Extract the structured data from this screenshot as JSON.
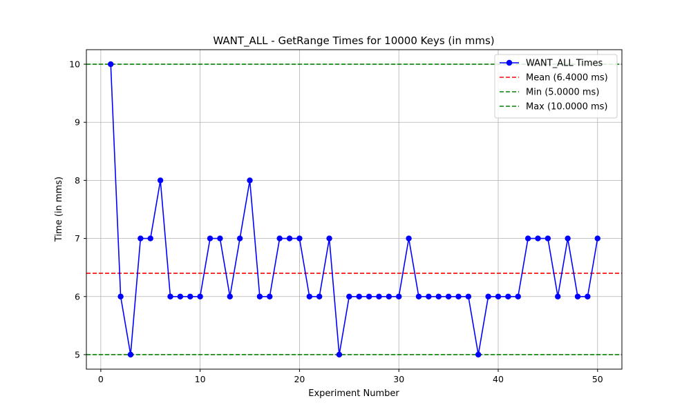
{
  "chart_data": {
    "type": "line",
    "title": "WANT_ALL - GetRange Times for 10000 Keys (in mms)",
    "xlabel": "Experiment Number",
    "ylabel": "Time (in mms)",
    "xlim": [
      -1.45,
      52.45
    ],
    "ylim": [
      4.75,
      10.25
    ],
    "xticks": [
      0,
      10,
      20,
      30,
      40,
      50
    ],
    "yticks": [
      5,
      6,
      7,
      8,
      9,
      10
    ],
    "grid": true,
    "legend_position": "top-right",
    "x": [
      1,
      2,
      3,
      4,
      5,
      6,
      7,
      8,
      9,
      10,
      11,
      12,
      13,
      14,
      15,
      16,
      17,
      18,
      19,
      20,
      21,
      22,
      23,
      24,
      25,
      26,
      27,
      28,
      29,
      30,
      31,
      32,
      33,
      34,
      35,
      36,
      37,
      38,
      39,
      40,
      41,
      42,
      43,
      44,
      45,
      46,
      47,
      48,
      49,
      50
    ],
    "series": [
      {
        "name": "WANT_ALL Times",
        "color": "#0000ff",
        "style": "solid-with-circle-markers",
        "values": [
          10,
          6,
          5,
          7,
          7,
          8,
          6,
          6,
          6,
          6,
          7,
          7,
          6,
          7,
          8,
          6,
          6,
          7,
          7,
          7,
          6,
          6,
          7,
          5,
          6,
          6,
          6,
          6,
          6,
          6,
          7,
          6,
          6,
          6,
          6,
          6,
          6,
          5,
          6,
          6,
          6,
          6,
          7,
          7,
          7,
          6,
          7,
          6,
          6,
          7
        ]
      }
    ],
    "reference_lines": [
      {
        "name": "Mean (6.4000 ms)",
        "y": 6.4,
        "color": "#ff0000",
        "style": "dashed"
      },
      {
        "name": "Min (5.0000 ms)",
        "y": 5.0,
        "color": "#008000",
        "style": "dashed"
      },
      {
        "name": "Max (10.0000 ms)",
        "y": 10.0,
        "color": "#008000",
        "style": "dashed"
      }
    ]
  }
}
